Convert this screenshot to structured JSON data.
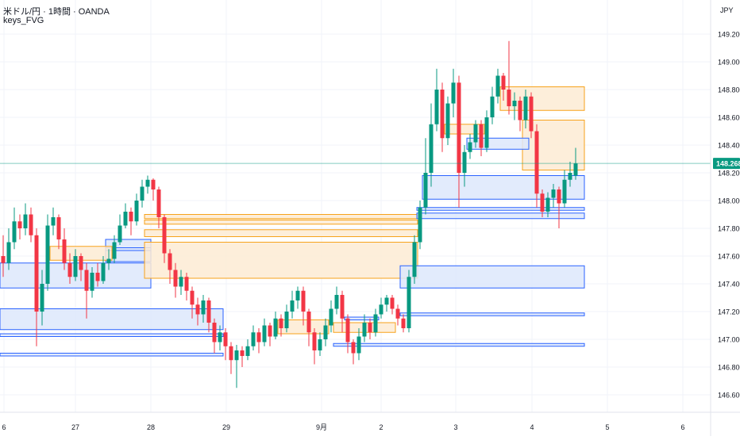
{
  "header": {
    "title": "米ドル/円 · 1時間 · OANDA",
    "indicator": "keys_FVG",
    "currency": "JPY"
  },
  "colors": {
    "up": "#089981",
    "down": "#F23645",
    "bull_fvg_fill": "#DDE8FB",
    "bull_fvg_line": "#2962FF",
    "bear_fvg_fill": "#FDEBD3",
    "bear_fvg_line": "#F7A21B",
    "last_price_bg": "#089981",
    "grid": "#F0F3FA"
  },
  "chart_data": {
    "type": "candlestick",
    "symbol": "USDJPY",
    "interval": "1時間",
    "ylim": [
      146.55,
      149.35
    ],
    "y_ticks": [
      "149.200",
      "149.000",
      "148.800",
      "148.600",
      "148.400",
      "148.200",
      "148.000",
      "147.800",
      "147.600",
      "147.400",
      "147.200",
      "147.000",
      "146.800",
      "146.600"
    ],
    "x_ticks": [
      "6",
      "27",
      "28",
      "29",
      "9月",
      "2",
      "3",
      "4",
      "5",
      "6"
    ],
    "last_price": "148.268",
    "series": [
      {
        "c": 147.55,
        "o": 147.6,
        "h": 147.75,
        "l": 147.45
      },
      {
        "c": 147.7,
        "o": 147.55,
        "h": 147.8,
        "l": 147.5
      },
      {
        "c": 147.85,
        "o": 147.7,
        "h": 147.95,
        "l": 147.65
      },
      {
        "c": 147.8,
        "o": 147.85,
        "h": 147.9,
        "l": 147.72
      },
      {
        "c": 147.9,
        "o": 147.8,
        "h": 147.98,
        "l": 147.75
      },
      {
        "c": 147.75,
        "o": 147.9,
        "h": 147.95,
        "l": 147.7
      },
      {
        "c": 147.2,
        "o": 147.75,
        "h": 147.8,
        "l": 146.95
      },
      {
        "c": 147.4,
        "o": 147.2,
        "h": 147.5,
        "l": 147.1
      },
      {
        "c": 147.82,
        "o": 147.4,
        "h": 147.9,
        "l": 147.35
      },
      {
        "c": 147.88,
        "o": 147.82,
        "h": 147.95,
        "l": 147.75
      },
      {
        "c": 147.72,
        "o": 147.88,
        "h": 147.9,
        "l": 147.65
      },
      {
        "c": 147.55,
        "o": 147.72,
        "h": 147.8,
        "l": 147.5
      },
      {
        "c": 147.45,
        "o": 147.55,
        "h": 147.62,
        "l": 147.4
      },
      {
        "c": 147.6,
        "o": 147.45,
        "h": 147.65,
        "l": 147.42
      },
      {
        "c": 147.5,
        "o": 147.6,
        "h": 147.62,
        "l": 147.42
      },
      {
        "c": 147.35,
        "o": 147.5,
        "h": 147.55,
        "l": 147.15
      },
      {
        "c": 147.48,
        "o": 147.35,
        "h": 147.52,
        "l": 147.3
      },
      {
        "c": 147.42,
        "o": 147.48,
        "h": 147.55,
        "l": 147.38
      },
      {
        "c": 147.55,
        "o": 147.42,
        "h": 147.6,
        "l": 147.4
      },
      {
        "c": 147.58,
        "o": 147.55,
        "h": 147.65,
        "l": 147.5
      },
      {
        "c": 147.7,
        "o": 147.58,
        "h": 147.75,
        "l": 147.55
      },
      {
        "c": 147.82,
        "o": 147.7,
        "h": 147.9,
        "l": 147.68
      },
      {
        "c": 147.92,
        "o": 147.82,
        "h": 147.98,
        "l": 147.8
      },
      {
        "c": 147.85,
        "o": 147.92,
        "h": 147.95,
        "l": 147.75
      },
      {
        "c": 148.0,
        "o": 147.85,
        "h": 148.05,
        "l": 147.82
      },
      {
        "c": 148.1,
        "o": 148.0,
        "h": 148.15,
        "l": 147.95
      },
      {
        "c": 148.15,
        "o": 148.1,
        "h": 148.18,
        "l": 148.05
      },
      {
        "c": 148.08,
        "o": 148.15,
        "h": 148.16,
        "l": 148.0
      },
      {
        "c": 147.88,
        "o": 148.08,
        "h": 148.1,
        "l": 147.8
      },
      {
        "c": 147.62,
        "o": 147.88,
        "h": 147.9,
        "l": 147.55
      },
      {
        "c": 147.5,
        "o": 147.62,
        "h": 147.65,
        "l": 147.4
      },
      {
        "c": 147.38,
        "o": 147.5,
        "h": 147.55,
        "l": 147.3
      },
      {
        "c": 147.45,
        "o": 147.38,
        "h": 147.5,
        "l": 147.32
      },
      {
        "c": 147.35,
        "o": 147.45,
        "h": 147.48,
        "l": 147.28
      },
      {
        "c": 147.25,
        "o": 147.35,
        "h": 147.38,
        "l": 147.15
      },
      {
        "c": 147.18,
        "o": 147.25,
        "h": 147.3,
        "l": 147.1
      },
      {
        "c": 147.28,
        "o": 147.18,
        "h": 147.32,
        "l": 147.12
      },
      {
        "c": 147.12,
        "o": 147.28,
        "h": 147.3,
        "l": 147.05
      },
      {
        "c": 146.98,
        "o": 147.12,
        "h": 147.15,
        "l": 146.9
      },
      {
        "c": 147.05,
        "o": 146.98,
        "h": 147.1,
        "l": 146.92
      },
      {
        "c": 146.95,
        "o": 147.05,
        "h": 147.08,
        "l": 146.85
      },
      {
        "c": 146.85,
        "o": 146.95,
        "h": 146.98,
        "l": 146.75
      },
      {
        "c": 146.92,
        "o": 146.85,
        "h": 146.96,
        "l": 146.65
      },
      {
        "c": 146.88,
        "o": 146.92,
        "h": 146.95,
        "l": 146.8
      },
      {
        "c": 146.95,
        "o": 146.88,
        "h": 147.0,
        "l": 146.85
      },
      {
        "c": 147.05,
        "o": 146.95,
        "h": 147.1,
        "l": 146.92
      },
      {
        "c": 146.98,
        "o": 147.05,
        "h": 147.08,
        "l": 146.9
      },
      {
        "c": 147.1,
        "o": 146.98,
        "h": 147.15,
        "l": 146.95
      },
      {
        "c": 147.02,
        "o": 147.1,
        "h": 147.12,
        "l": 146.95
      },
      {
        "c": 147.15,
        "o": 147.02,
        "h": 147.2,
        "l": 147.0
      },
      {
        "c": 147.08,
        "o": 147.15,
        "h": 147.18,
        "l": 147.02
      },
      {
        "c": 147.2,
        "o": 147.08,
        "h": 147.25,
        "l": 147.05
      },
      {
        "c": 147.28,
        "o": 147.2,
        "h": 147.35,
        "l": 147.15
      },
      {
        "c": 147.35,
        "o": 147.28,
        "h": 147.38,
        "l": 147.22
      },
      {
        "c": 147.2,
        "o": 147.35,
        "h": 147.38,
        "l": 147.1
      },
      {
        "c": 147.05,
        "o": 147.2,
        "h": 147.22,
        "l": 146.95
      },
      {
        "c": 146.92,
        "o": 147.05,
        "h": 147.08,
        "l": 146.82
      },
      {
        "c": 147.0,
        "o": 146.92,
        "h": 147.05,
        "l": 146.88
      },
      {
        "c": 147.1,
        "o": 147.0,
        "h": 147.15,
        "l": 146.95
      },
      {
        "c": 147.22,
        "o": 147.1,
        "h": 147.28,
        "l": 147.05
      },
      {
        "c": 147.32,
        "o": 147.22,
        "h": 147.38,
        "l": 147.18
      },
      {
        "c": 147.15,
        "o": 147.32,
        "h": 147.35,
        "l": 147.05
      },
      {
        "c": 146.98,
        "o": 147.15,
        "h": 147.18,
        "l": 146.9
      },
      {
        "c": 146.9,
        "o": 146.98,
        "h": 147.0,
        "l": 146.82
      },
      {
        "c": 147.02,
        "o": 146.9,
        "h": 147.08,
        "l": 146.85
      },
      {
        "c": 147.12,
        "o": 147.02,
        "h": 147.18,
        "l": 146.98
      },
      {
        "c": 147.05,
        "o": 147.12,
        "h": 147.15,
        "l": 147.0
      },
      {
        "c": 147.18,
        "o": 147.05,
        "h": 147.22,
        "l": 147.02
      },
      {
        "c": 147.25,
        "o": 147.18,
        "h": 147.3,
        "l": 147.15
      },
      {
        "c": 147.3,
        "o": 147.25,
        "h": 147.32,
        "l": 147.2
      },
      {
        "c": 147.22,
        "o": 147.3,
        "h": 147.32,
        "l": 147.18
      },
      {
        "c": 147.15,
        "o": 147.22,
        "h": 147.25,
        "l": 147.1
      },
      {
        "c": 147.08,
        "o": 147.15,
        "h": 147.18,
        "l": 147.05
      },
      {
        "c": 147.45,
        "o": 147.08,
        "h": 147.5,
        "l": 147.05
      },
      {
        "c": 147.7,
        "o": 147.45,
        "h": 147.75,
        "l": 147.4
      },
      {
        "c": 147.95,
        "o": 147.7,
        "h": 148.0,
        "l": 147.65
      },
      {
        "c": 148.2,
        "o": 147.95,
        "h": 148.45,
        "l": 147.9
      },
      {
        "c": 148.55,
        "o": 148.2,
        "h": 148.7,
        "l": 148.1
      },
      {
        "c": 148.8,
        "o": 148.55,
        "h": 148.95,
        "l": 148.5
      },
      {
        "c": 148.45,
        "o": 148.8,
        "h": 148.85,
        "l": 148.35
      },
      {
        "c": 148.7,
        "o": 148.45,
        "h": 148.75,
        "l": 148.4
      },
      {
        "c": 148.85,
        "o": 148.7,
        "h": 148.95,
        "l": 148.6
      },
      {
        "c": 148.2,
        "o": 148.85,
        "h": 148.9,
        "l": 147.95
      },
      {
        "c": 148.35,
        "o": 148.2,
        "h": 148.4,
        "l": 148.1
      },
      {
        "c": 148.42,
        "o": 148.35,
        "h": 148.48,
        "l": 148.3
      },
      {
        "c": 148.55,
        "o": 148.42,
        "h": 148.58,
        "l": 148.38
      },
      {
        "c": 148.38,
        "o": 148.55,
        "h": 148.58,
        "l": 148.32
      },
      {
        "c": 148.6,
        "o": 148.38,
        "h": 148.65,
        "l": 148.35
      },
      {
        "c": 148.75,
        "o": 148.6,
        "h": 148.82,
        "l": 148.55
      },
      {
        "c": 148.9,
        "o": 148.75,
        "h": 148.95,
        "l": 148.7
      },
      {
        "c": 148.8,
        "o": 148.9,
        "h": 148.92,
        "l": 148.72
      },
      {
        "c": 148.68,
        "o": 148.8,
        "h": 149.15,
        "l": 148.62
      },
      {
        "c": 148.72,
        "o": 148.68,
        "h": 148.78,
        "l": 148.58
      },
      {
        "c": 148.58,
        "o": 148.72,
        "h": 148.75,
        "l": 148.5
      },
      {
        "c": 148.75,
        "o": 148.58,
        "h": 148.8,
        "l": 148.52
      },
      {
        "c": 148.5,
        "o": 148.75,
        "h": 148.78,
        "l": 148.45
      },
      {
        "c": 148.05,
        "o": 148.5,
        "h": 148.55,
        "l": 147.95
      },
      {
        "c": 147.92,
        "o": 148.05,
        "h": 148.08,
        "l": 147.88
      },
      {
        "c": 148.02,
        "o": 147.92,
        "h": 148.06,
        "l": 147.88
      },
      {
        "c": 148.08,
        "o": 148.02,
        "h": 148.12,
        "l": 147.95
      },
      {
        "c": 147.98,
        "o": 148.08,
        "h": 148.1,
        "l": 147.8
      },
      {
        "c": 148.15,
        "o": 147.98,
        "h": 148.22,
        "l": 147.95
      },
      {
        "c": 148.2,
        "o": 148.15,
        "h": 148.28,
        "l": 148.1
      },
      {
        "c": 148.268,
        "o": 148.18,
        "h": 148.38,
        "l": 148.15
      }
    ],
    "fvg_zones": [
      {
        "type": "bull",
        "top": 147.22,
        "bottom": 147.07,
        "start": 0,
        "end": 39
      },
      {
        "type": "bull",
        "top": 147.04,
        "bottom": 147.02,
        "start": 0,
        "end": 39
      },
      {
        "type": "bull",
        "top": 146.9,
        "bottom": 146.88,
        "start": 0,
        "end": 39
      },
      {
        "type": "bull",
        "top": 147.72,
        "bottom": 147.56,
        "start": 19,
        "end": 26
      },
      {
        "type": "bull",
        "top": 147.66,
        "bottom": 147.64,
        "start": 19,
        "end": 26
      },
      {
        "type": "bull",
        "top": 147.55,
        "bottom": 147.37,
        "start": 0,
        "end": 26
      },
      {
        "type": "bear",
        "top": 147.67,
        "bottom": 147.57,
        "start": 9,
        "end": 19
      },
      {
        "type": "bear",
        "top": 147.9,
        "bottom": 147.87,
        "start": 26,
        "end": 74
      },
      {
        "type": "bear",
        "top": 147.86,
        "bottom": 147.83,
        "start": 26,
        "end": 74
      },
      {
        "type": "bear",
        "top": 147.79,
        "bottom": 147.74,
        "start": 26,
        "end": 74
      },
      {
        "type": "bear",
        "top": 147.7,
        "bottom": 147.44,
        "start": 26,
        "end": 74
      },
      {
        "type": "bull",
        "top": 147.16,
        "bottom": 147.14,
        "start": 62,
        "end": 67
      },
      {
        "type": "bear",
        "top": 147.14,
        "bottom": 147.04,
        "start": 50,
        "end": 58
      },
      {
        "type": "bear",
        "top": 147.12,
        "bottom": 147.05,
        "start": 60,
        "end": 70
      },
      {
        "type": "bull",
        "top": 146.97,
        "bottom": 146.95,
        "start": 60,
        "end": 104
      },
      {
        "type": "bull",
        "top": 147.53,
        "bottom": 147.37,
        "start": 72,
        "end": 104
      },
      {
        "type": "bull",
        "top": 147.19,
        "bottom": 147.17,
        "start": 72,
        "end": 104
      },
      {
        "type": "bull",
        "top": 148.18,
        "bottom": 148.01,
        "start": 76,
        "end": 104
      },
      {
        "type": "bull",
        "top": 147.95,
        "bottom": 147.93,
        "start": 75,
        "end": 104
      },
      {
        "type": "bull",
        "top": 147.91,
        "bottom": 147.87,
        "start": 75,
        "end": 104
      },
      {
        "type": "bear",
        "top": 148.82,
        "bottom": 148.65,
        "start": 90,
        "end": 104
      },
      {
        "type": "bear",
        "top": 148.58,
        "bottom": 148.22,
        "start": 94,
        "end": 104
      },
      {
        "type": "bull",
        "top": 148.45,
        "bottom": 148.37,
        "start": 84,
        "end": 94
      },
      {
        "type": "bear",
        "top": 148.55,
        "bottom": 148.48,
        "start": 80,
        "end": 86
      }
    ],
    "grid": true
  }
}
